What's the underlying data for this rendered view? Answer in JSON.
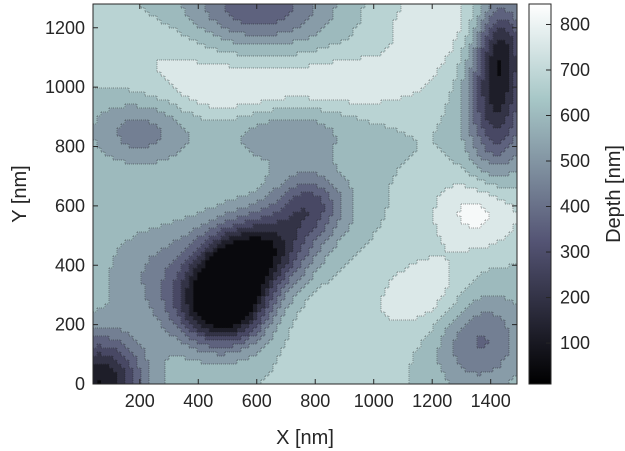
{
  "chart_data": {
    "type": "heatmap",
    "subtype": "filled-contour",
    "xlabel": "X [nm]",
    "ylabel": "Y [nm]",
    "xlim": [
      40,
      1490
    ],
    "ylim": [
      0,
      1280
    ],
    "xticks": [
      200,
      400,
      600,
      800,
      1000,
      1200,
      1400
    ],
    "yticks": [
      0,
      200,
      400,
      600,
      800,
      1000,
      1200
    ],
    "colorbar": {
      "label": "Depth [nm]",
      "range": [
        10,
        845
      ],
      "ticks": [
        100,
        200,
        300,
        400,
        500,
        600,
        700,
        800
      ],
      "colormap": "bone",
      "position": "right"
    },
    "contour_levels": [
      80,
      160,
      240,
      320,
      400,
      480,
      560,
      640,
      720,
      800
    ],
    "contour_line_style": "dotted",
    "surface_features": [
      {
        "kind": "minimum",
        "x": 510,
        "y": 330,
        "depth": 60,
        "sx": 90,
        "sy": 110
      },
      {
        "kind": "minimum",
        "x": 630,
        "y": 450,
        "depth": 170,
        "sx": 110,
        "sy": 90
      },
      {
        "kind": "minimum",
        "x": 780,
        "y": 600,
        "depth": 300,
        "sx": 90,
        "sy": 80
      },
      {
        "kind": "minimum",
        "x": 460,
        "y": 250,
        "depth": 260,
        "sx": 110,
        "sy": 90
      },
      {
        "kind": "minimum",
        "x": 60,
        "y": 10,
        "depth": 80,
        "sx": 110,
        "sy": 110
      },
      {
        "kind": "minimum",
        "x": 1420,
        "y": 960,
        "depth": 170,
        "sx": 70,
        "sy": 170
      },
      {
        "kind": "minimum",
        "x": 1440,
        "y": 1160,
        "depth": 330,
        "sx": 60,
        "sy": 110
      },
      {
        "kind": "minimum",
        "x": 600,
        "y": 1270,
        "depth": 330,
        "sx": 170,
        "sy": 90
      },
      {
        "kind": "minimum",
        "x": 1360,
        "y": 150,
        "depth": 380,
        "sx": 110,
        "sy": 120
      },
      {
        "kind": "minimum",
        "x": 200,
        "y": 850,
        "depth": 440,
        "sx": 120,
        "sy": 80
      },
      {
        "kind": "minimum",
        "x": 300,
        "y": 380,
        "depth": 470,
        "sx": 160,
        "sy": 120
      },
      {
        "kind": "minimum",
        "x": 700,
        "y": 850,
        "depth": 490,
        "sx": 160,
        "sy": 80
      },
      {
        "kind": "maximum",
        "x": 1360,
        "y": 580,
        "depth": 840,
        "sx": 110,
        "sy": 90
      },
      {
        "kind": "maximum",
        "x": 1200,
        "y": 300,
        "depth": 790,
        "sx": 110,
        "sy": 100
      },
      {
        "kind": "maximum",
        "x": 900,
        "y": 1010,
        "depth": 790,
        "sx": 200,
        "sy": 70
      },
      {
        "kind": "maximum",
        "x": 520,
        "y": 980,
        "depth": 770,
        "sx": 150,
        "sy": 70
      },
      {
        "kind": "maximum",
        "x": 1230,
        "y": 1210,
        "depth": 780,
        "sx": 160,
        "sy": 110
      },
      {
        "kind": "maximum",
        "x": 880,
        "y": 200,
        "depth": 710,
        "sx": 160,
        "sy": 140
      },
      {
        "kind": "maximum",
        "x": 150,
        "y": 450,
        "depth": 640,
        "sx": 120,
        "sy": 140
      },
      {
        "kind": "maximum",
        "x": 300,
        "y": 1100,
        "depth": 720,
        "sx": 160,
        "sy": 110
      }
    ],
    "baseline_depth": 640
  }
}
